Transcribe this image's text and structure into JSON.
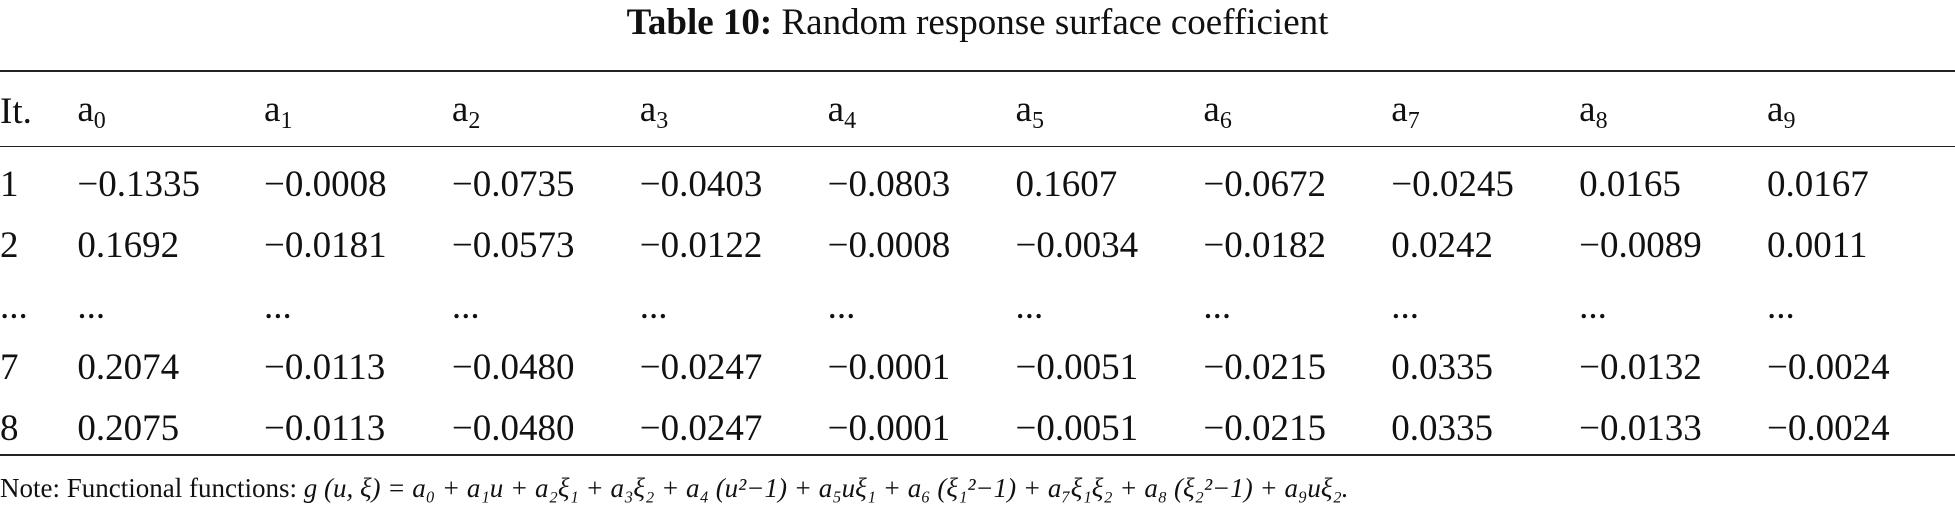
{
  "caption": {
    "label": "Table 10:",
    "title": "Random response surface coefficient"
  },
  "table": {
    "headers": [
      {
        "base": "It.",
        "sub": ""
      },
      {
        "base": "a",
        "sub": "0"
      },
      {
        "base": "a",
        "sub": "1"
      },
      {
        "base": "a",
        "sub": "2"
      },
      {
        "base": "a",
        "sub": "3"
      },
      {
        "base": "a",
        "sub": "4"
      },
      {
        "base": "a",
        "sub": "5"
      },
      {
        "base": "a",
        "sub": "6"
      },
      {
        "base": "a",
        "sub": "7"
      },
      {
        "base": "a",
        "sub": "8"
      },
      {
        "base": "a",
        "sub": "9"
      }
    ],
    "rows": [
      [
        "1",
        "−0.1335",
        "−0.0008",
        "−0.0735",
        "−0.0403",
        "−0.0803",
        "0.1607",
        "−0.0672",
        "−0.0245",
        "0.0165",
        "0.0167"
      ],
      [
        "2",
        "0.1692",
        "−0.0181",
        "−0.0573",
        "−0.0122",
        "−0.0008",
        "−0.0034",
        "−0.0182",
        "0.0242",
        "−0.0089",
        "0.0011"
      ],
      [
        "...",
        "...",
        "...",
        "...",
        "...",
        "...",
        "...",
        "...",
        "...",
        "...",
        "..."
      ],
      [
        "7",
        "0.2074",
        "−0.0113",
        "−0.0480",
        "−0.0247",
        "−0.0001",
        "−0.0051",
        "−0.0215",
        "0.0335",
        "−0.0132",
        "−0.0024"
      ],
      [
        "8",
        "0.2075",
        "−0.0113",
        "−0.0480",
        "−0.0247",
        "−0.0001",
        "−0.0051",
        "−0.0215",
        "0.0335",
        "−0.0133",
        "−0.0024"
      ]
    ]
  },
  "note": {
    "prefix": "Note: Functional functions:",
    "formula": "g (u, ξ) = a₀ + a₁u + a₂ξ₁ + a₃ξ₂ + a₄ (u²−1) + a₅uξ₁ + a₆ (ξ₁²−1) + a₇ξ₁ξ₂ + a₈ (ξ₂²−1) + a₉uξ₂."
  }
}
